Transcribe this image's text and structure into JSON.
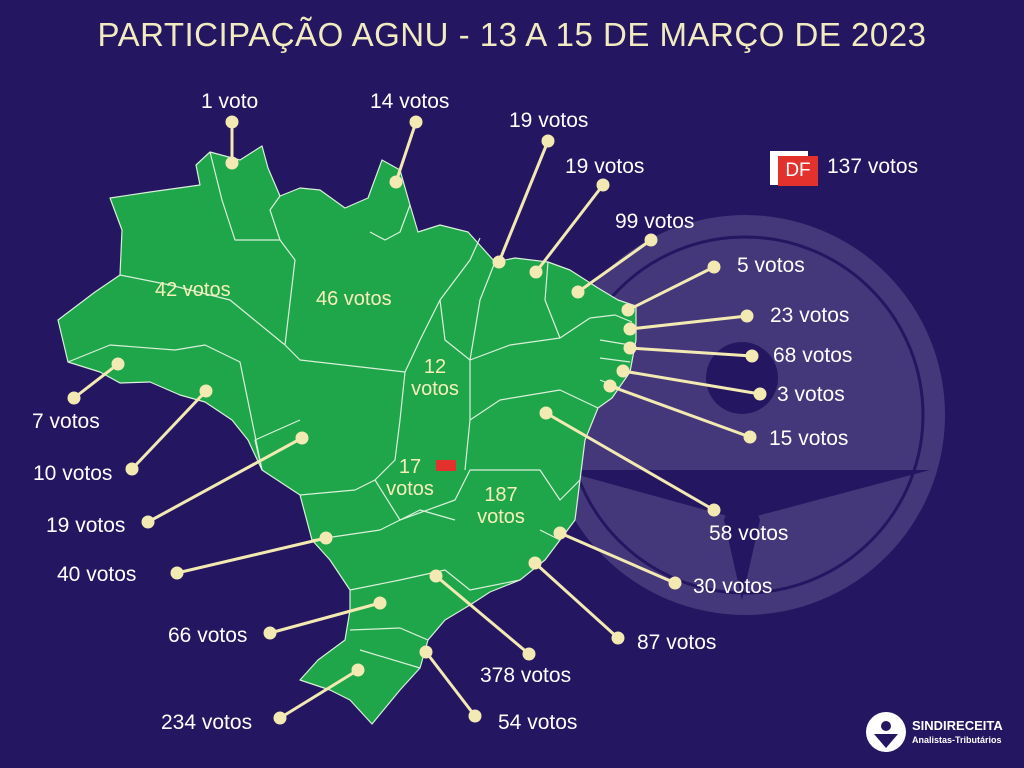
{
  "title": "PARTICIPAÇÃO AGNU - 13 A 15 DE MARÇO DE 2023",
  "colors": {
    "background": "#241660",
    "land": "#1fa64a",
    "border": "#d9f0d9",
    "leader": "#f3e9b3",
    "df_marker": "#e3312d",
    "title": "#f1ebbf"
  },
  "df": {
    "badge": "DF",
    "votes": "137 votos"
  },
  "states": [
    {
      "label": "1 voto"
    },
    {
      "label": "14 votos"
    },
    {
      "label": "19 votos"
    },
    {
      "label": "19 votos"
    },
    {
      "label": "99 votos"
    },
    {
      "label": "5 votos"
    },
    {
      "label": "23 votos"
    },
    {
      "label": "68 votos"
    },
    {
      "label": "3 votos"
    },
    {
      "label": "15 votos"
    },
    {
      "label": "58 votos"
    },
    {
      "label": "30 votos"
    },
    {
      "label": "87 votos"
    },
    {
      "label": "378 votos"
    },
    {
      "label": "54 votos"
    },
    {
      "label": "234 votos"
    },
    {
      "label": "66 votos"
    },
    {
      "label": "40 votos"
    },
    {
      "label": "19 votos"
    },
    {
      "label": "10 votos"
    },
    {
      "label": "7 votos"
    },
    {
      "label": "42 votos"
    },
    {
      "label": "46 votos"
    },
    {
      "line1": "12",
      "line2": "votos"
    },
    {
      "line1": "17",
      "line2": "votos"
    },
    {
      "line1": "187",
      "line2": "votos"
    }
  ],
  "logo": {
    "name": "SINDIRECEITA",
    "tagline": "Analistas-Tributários",
    "icon": "sindireceita-logo-icon"
  },
  "watermark": {
    "icon": "sindireceita-emblem-watermark"
  }
}
